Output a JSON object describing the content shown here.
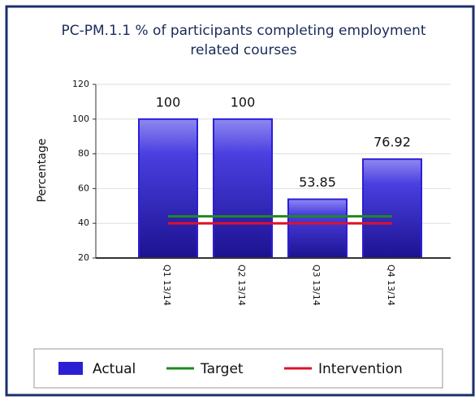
{
  "chart_data": {
    "type": "bar",
    "title": [
      "PC-PM.1.1 % of participants completing employment",
      "related courses"
    ],
    "ylabel": "Percentage",
    "categories": [
      "Q1 13/14",
      "Q2 13/14",
      "Q3 13/14",
      "Q4 13/14"
    ],
    "series": [
      {
        "name": "Actual",
        "color": "#2b1fd6",
        "values": [
          100,
          100,
          53.85,
          76.92
        ]
      },
      {
        "name": "Target",
        "color": "#1f8a1f",
        "type": "line",
        "values": [
          44,
          44,
          44,
          44
        ]
      },
      {
        "name": "Intervention",
        "color": "#e0102a",
        "type": "line",
        "values": [
          40,
          40,
          40,
          40
        ]
      }
    ],
    "ylim": [
      20,
      120
    ],
    "yticks": [
      20,
      40,
      60,
      80,
      100,
      120
    ],
    "grid": true
  }
}
